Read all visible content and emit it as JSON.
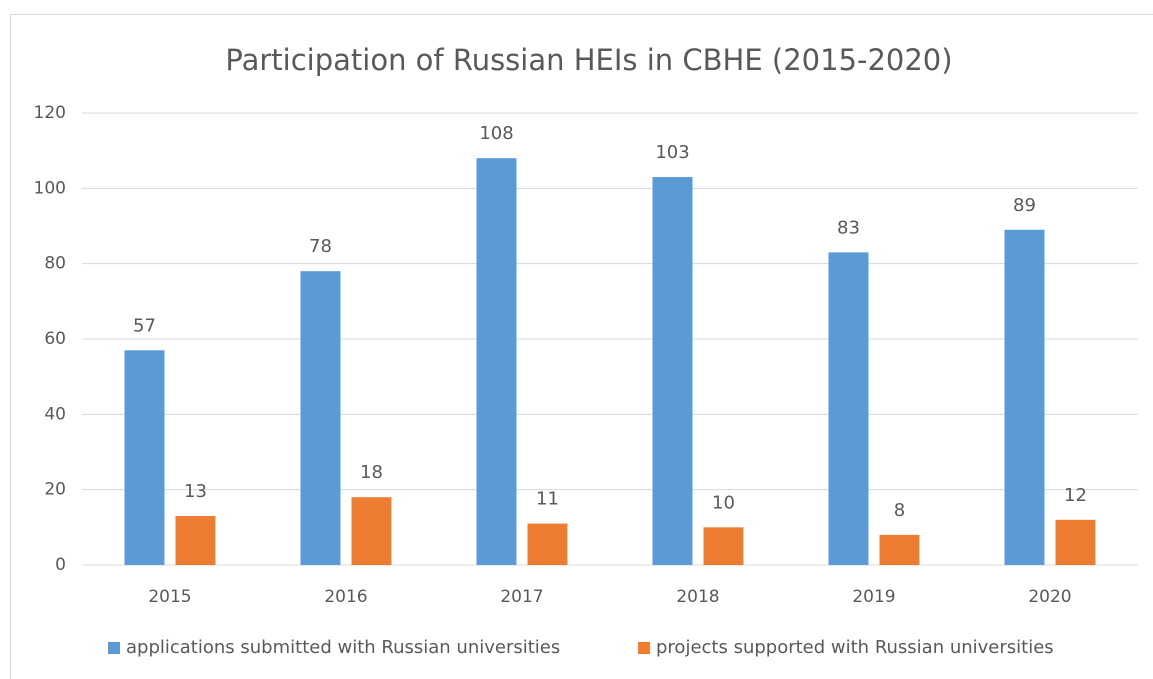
{
  "chart_data": {
    "type": "bar",
    "title": "Participation of Russian HEIs in CBHE (2015-2020)",
    "categories": [
      "2015",
      "2016",
      "2017",
      "2018",
      "2019",
      "2020"
    ],
    "series": [
      {
        "name": "applications submitted with Russian universities",
        "color": "#5b9bd5",
        "values": [
          57,
          78,
          108,
          103,
          83,
          89
        ]
      },
      {
        "name": "projects supported with Russian universities",
        "color": "#ed7d31",
        "values": [
          13,
          18,
          11,
          10,
          8,
          12
        ]
      }
    ],
    "ylim": [
      0,
      120
    ],
    "yticks": [
      0,
      20,
      40,
      60,
      80,
      100,
      120
    ],
    "grid": true,
    "legend": "bottom",
    "data_labels": true
  }
}
